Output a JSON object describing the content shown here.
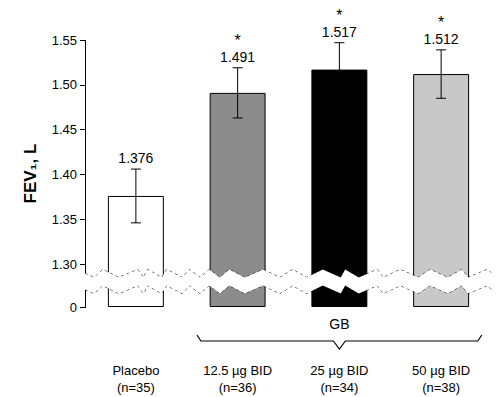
{
  "chart_data": {
    "type": "bar",
    "categories": [
      "Placebo\n(n=35)",
      "12.5 µg BID\n(n=36)",
      "25 µg BID\n(n=34)",
      "50 µg BID\n(n=38)"
    ],
    "values": [
      1.376,
      1.491,
      1.517,
      1.512
    ],
    "errors": [
      0.03,
      0.028,
      0.03,
      0.027
    ],
    "colors": [
      "#ffffff",
      "#8c8c8c",
      "#000000",
      "#c8c8c8"
    ],
    "ylabel": "FEV₁, L",
    "ylim": [
      0,
      1.55
    ],
    "yticks": [
      0,
      {
        "value": 1.3,
        "label": "1.30"
      },
      {
        "value": 1.35,
        "label": "1.35"
      },
      {
        "value": 1.4,
        "label": "1.40"
      },
      {
        "value": 1.45,
        "label": "1.45"
      },
      {
        "value": 1.5,
        "label": "1.50"
      },
      {
        "value": 1.55,
        "label": "1.55"
      }
    ],
    "data_labels": true,
    "annotations": [
      {
        "category_index": 1,
        "text": "*"
      },
      {
        "category_index": 2,
        "text": "*"
      },
      {
        "category_index": 3,
        "text": "*"
      }
    ],
    "group": {
      "label": "GB",
      "categories": [
        "12.5 µg BID\n(n=36)",
        "25 µg BID\n(n=34)",
        "50 µg BID\n(n=38)"
      ]
    },
    "grid": false
  }
}
